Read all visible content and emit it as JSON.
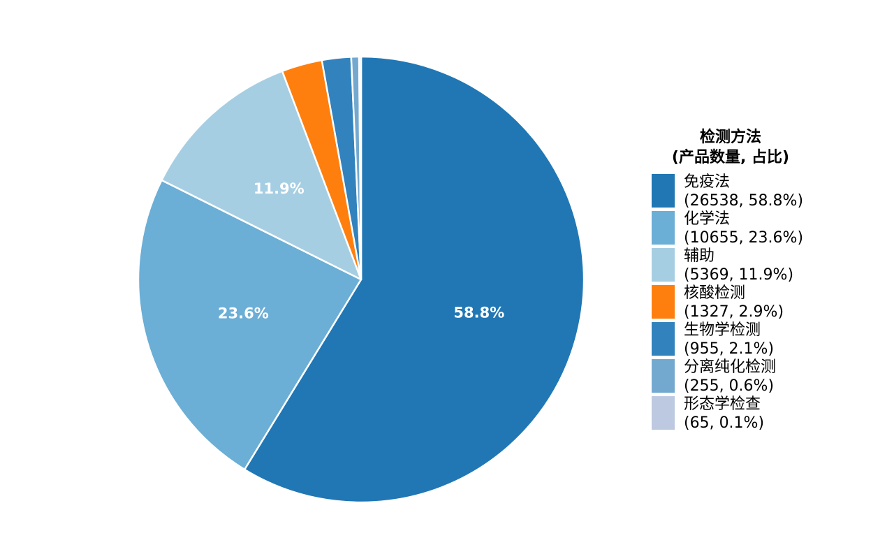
{
  "chart_data": {
    "type": "pie",
    "start_angle_deg": 90,
    "direction": "clockwise",
    "legend_title": [
      "检测方法",
      "(产品数量, 占比)"
    ],
    "legend_position": "right",
    "slices": [
      {
        "label": "免疫法",
        "count": "26538",
        "percent": "58.8%",
        "value": 26538,
        "color": "#2077b4",
        "show_label": true
      },
      {
        "label": "化学法",
        "count": "10655",
        "percent": "23.6%",
        "value": 10655,
        "color": "#6baed6",
        "show_label": true
      },
      {
        "label": "辅助",
        "count": "5369",
        "percent": "11.9%",
        "value": 5369,
        "color": "#a6cee3",
        "show_label": true
      },
      {
        "label": "核酸检测",
        "count": "1327",
        "percent": "2.9%",
        "value": 1327,
        "color": "#ff7f0e",
        "show_label": false
      },
      {
        "label": "生物学检测",
        "count": "955",
        "percent": "2.1%",
        "value": 955,
        "color": "#3182bd",
        "show_label": false
      },
      {
        "label": "分离纯化检测",
        "count": "255",
        "percent": "0.6%",
        "value": 255,
        "color": "#74a9cf",
        "show_label": false
      },
      {
        "label": "形态学检查",
        "count": "65",
        "percent": "0.1%",
        "value": 65,
        "color": "#bdc9e1",
        "show_label": false
      }
    ]
  }
}
